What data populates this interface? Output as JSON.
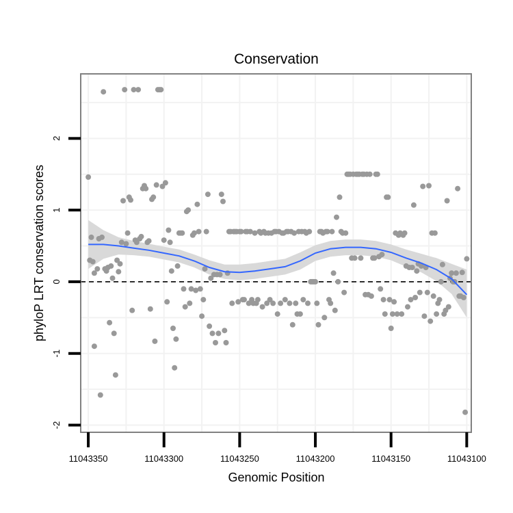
{
  "chart_data": {
    "type": "scatter",
    "title": "Conservation",
    "xlabel": "Genomic Position",
    "ylabel": "phyloP LRT conservation scores",
    "x_reversed": true,
    "xlim": [
      11043355,
      11043097
    ],
    "ylim": [
      -2.1,
      2.9
    ],
    "x_ticks": [
      {
        "value": 11043350,
        "label": "11043350"
      },
      {
        "value": 11043300,
        "label": "11043300"
      },
      {
        "value": 11043250,
        "label": "11043250"
      },
      {
        "value": 11043200,
        "label": "11043200"
      },
      {
        "value": 11043150,
        "label": "11043150"
      },
      {
        "value": 11043100,
        "label": "11043100"
      }
    ],
    "y_ticks": [
      {
        "value": -2,
        "label": "-2"
      },
      {
        "value": -1,
        "label": "-1"
      },
      {
        "value": 0,
        "label": "0"
      },
      {
        "value": 1,
        "label": "1"
      },
      {
        "value": 2,
        "label": "2"
      }
    ],
    "reference_line": {
      "y": 0,
      "style": "dashed"
    },
    "colors": {
      "points": "#999999",
      "smooth": "#3366ff",
      "ribbon": "#d9d9d9",
      "panel_border": "#808080",
      "grid": "#f2f2f2"
    },
    "points": [
      [
        11043350,
        1.46
      ],
      [
        11043349,
        0.3
      ],
      [
        11043348,
        0.62
      ],
      [
        11043347,
        0.28
      ],
      [
        11043346,
        0.12
      ],
      [
        11043346,
        -0.9
      ],
      [
        11043344,
        0.18
      ],
      [
        11043343,
        0.6
      ],
      [
        11043342,
        -1.58
      ],
      [
        11043341,
        0.62
      ],
      [
        11043340,
        2.65
      ],
      [
        11043339,
        0.18
      ],
      [
        11043338,
        0.15
      ],
      [
        11043337,
        0.2
      ],
      [
        11043336,
        -0.57
      ],
      [
        11043335,
        0.22
      ],
      [
        11043334,
        0.05
      ],
      [
        11043333,
        -0.72
      ],
      [
        11043332,
        -1.3
      ],
      [
        11043331,
        0.3
      ],
      [
        11043330,
        0.14
      ],
      [
        11043329,
        0.25
      ],
      [
        11043328,
        0.55
      ],
      [
        11043327,
        1.13
      ],
      [
        11043326,
        2.68
      ],
      [
        11043325,
        0.53
      ],
      [
        11043324,
        0.68
      ],
      [
        11043323,
        1.18
      ],
      [
        11043322,
        1.14
      ],
      [
        11043321,
        -0.4
      ],
      [
        11043320,
        2.68
      ],
      [
        11043319,
        0.58
      ],
      [
        11043318,
        0.55
      ],
      [
        11043317,
        2.68
      ],
      [
        11043316,
        0.6
      ],
      [
        11043315,
        0.63
      ],
      [
        11043314,
        1.3
      ],
      [
        11043313,
        1.34
      ],
      [
        11043312,
        1.3
      ],
      [
        11043311,
        0.55
      ],
      [
        11043310,
        0.57
      ],
      [
        11043309,
        -0.38
      ],
      [
        11043308,
        1.15
      ],
      [
        11043307,
        1.18
      ],
      [
        11043306,
        -0.83
      ],
      [
        11043305,
        1.35
      ],
      [
        11043304,
        2.68
      ],
      [
        11043303,
        2.68
      ],
      [
        11043302,
        2.68
      ],
      [
        11043301,
        1.33
      ],
      [
        11043300,
        0.58
      ],
      [
        11043299,
        1.38
      ],
      [
        11043298,
        -0.28
      ],
      [
        11043297,
        0.72
      ],
      [
        11043296,
        0.55
      ],
      [
        11043295,
        0.15
      ],
      [
        11043294,
        -0.65
      ],
      [
        11043293,
        -1.2
      ],
      [
        11043292,
        -0.8
      ],
      [
        11043291,
        0.22
      ],
      [
        11043290,
        0.68
      ],
      [
        11043289,
        0.68
      ],
      [
        11043288,
        0.68
      ],
      [
        11043287,
        -0.1
      ],
      [
        11043286,
        -0.35
      ],
      [
        11043285,
        0.98
      ],
      [
        11043284,
        1.0
      ],
      [
        11043283,
        -0.3
      ],
      [
        11043282,
        -0.1
      ],
      [
        11043281,
        0.65
      ],
      [
        11043280,
        0.68
      ],
      [
        11043279,
        -0.12
      ],
      [
        11043278,
        1.08
      ],
      [
        11043277,
        0.7
      ],
      [
        11043276,
        -0.1
      ],
      [
        11043275,
        -0.48
      ],
      [
        11043274,
        -0.25
      ],
      [
        11043273,
        0.18
      ],
      [
        11043272,
        0.7
      ],
      [
        11043271,
        1.22
      ],
      [
        11043270,
        -0.62
      ],
      [
        11043269,
        0.05
      ],
      [
        11043268,
        -0.72
      ],
      [
        11043267,
        0.1
      ],
      [
        11043266,
        -0.85
      ],
      [
        11043265,
        0.1
      ],
      [
        11043264,
        -0.72
      ],
      [
        11043263,
        0.1
      ],
      [
        11043262,
        1.22
      ],
      [
        11043261,
        1.12
      ],
      [
        11043260,
        -0.68
      ],
      [
        11043259,
        -0.85
      ],
      [
        11043258,
        0.12
      ],
      [
        11043257,
        0.7
      ],
      [
        11043256,
        0.7
      ],
      [
        11043255,
        -0.3
      ],
      [
        11043254,
        0.7
      ],
      [
        11043253,
        0.7
      ],
      [
        11043252,
        0.7
      ],
      [
        11043251,
        -0.28
      ],
      [
        11043250,
        0.7
      ],
      [
        11043249,
        0.7
      ],
      [
        11043248,
        -0.25
      ],
      [
        11043247,
        -0.25
      ],
      [
        11043246,
        0.7
      ],
      [
        11043245,
        0.7
      ],
      [
        11043244,
        -0.3
      ],
      [
        11043243,
        0.7
      ],
      [
        11043242,
        -0.25
      ],
      [
        11043241,
        -0.3
      ],
      [
        11043240,
        0.68
      ],
      [
        11043239,
        -0.3
      ],
      [
        11043238,
        -0.25
      ],
      [
        11043237,
        0.7
      ],
      [
        11043236,
        0.68
      ],
      [
        11043235,
        -0.35
      ],
      [
        11043234,
        0.7
      ],
      [
        11043233,
        0.68
      ],
      [
        11043232,
        -0.3
      ],
      [
        11043231,
        0.68
      ],
      [
        11043230,
        -0.25
      ],
      [
        11043229,
        0.68
      ],
      [
        11043228,
        -0.3
      ],
      [
        11043227,
        0.7
      ],
      [
        11043226,
        0.7
      ],
      [
        11043225,
        -0.45
      ],
      [
        11043224,
        0.7
      ],
      [
        11043223,
        -0.3
      ],
      [
        11043222,
        0.68
      ],
      [
        11043221,
        0.68
      ],
      [
        11043220,
        -0.25
      ],
      [
        11043219,
        0.7
      ],
      [
        11043218,
        0.7
      ],
      [
        11043217,
        -0.3
      ],
      [
        11043216,
        0.7
      ],
      [
        11043215,
        -0.6
      ],
      [
        11043214,
        0.68
      ],
      [
        11043213,
        -0.3
      ],
      [
        11043212,
        -0.45
      ],
      [
        11043211,
        0.7
      ],
      [
        11043210,
        -0.45
      ],
      [
        11043209,
        0.7
      ],
      [
        11043208,
        -0.25
      ],
      [
        11043207,
        0.7
      ],
      [
        11043206,
        0.68
      ],
      [
        11043205,
        -0.3
      ],
      [
        11043204,
        0.7
      ],
      [
        11043203,
        0.0
      ],
      [
        11043202,
        0.0
      ],
      [
        11043201,
        0.0
      ],
      [
        11043200,
        0.0
      ],
      [
        11043199,
        -0.3
      ],
      [
        11043198,
        -0.6
      ],
      [
        11043197,
        0.7
      ],
      [
        11043196,
        0.7
      ],
      [
        11043195,
        0.68
      ],
      [
        11043194,
        -0.5
      ],
      [
        11043193,
        0.7
      ],
      [
        11043192,
        0.7
      ],
      [
        11043191,
        -0.25
      ],
      [
        11043190,
        -0.3
      ],
      [
        11043189,
        0.7
      ],
      [
        11043188,
        0.12
      ],
      [
        11043187,
        -0.4
      ],
      [
        11043186,
        0.9
      ],
      [
        11043185,
        0.0
      ],
      [
        11043184,
        1.18
      ],
      [
        11043183,
        0.7
      ],
      [
        11043182,
        0.68
      ],
      [
        11043181,
        -0.15
      ],
      [
        11043180,
        0.68
      ],
      [
        11043179,
        1.5
      ],
      [
        11043178,
        1.5
      ],
      [
        11043177,
        1.5
      ],
      [
        11043176,
        0.33
      ],
      [
        11043175,
        1.5
      ],
      [
        11043174,
        0.33
      ],
      [
        11043173,
        1.5
      ],
      [
        11043172,
        1.5
      ],
      [
        11043171,
        1.5
      ],
      [
        11043170,
        0.33
      ],
      [
        11043169,
        1.5
      ],
      [
        11043168,
        1.5
      ],
      [
        11043167,
        -0.18
      ],
      [
        11043166,
        1.5
      ],
      [
        11043165,
        -0.18
      ],
      [
        11043164,
        1.5
      ],
      [
        11043163,
        -0.2
      ],
      [
        11043162,
        0.33
      ],
      [
        11043161,
        0.33
      ],
      [
        11043160,
        1.5
      ],
      [
        11043159,
        1.5
      ],
      [
        11043158,
        0.35
      ],
      [
        11043157,
        -0.1
      ],
      [
        11043156,
        0.38
      ],
      [
        11043155,
        -0.25
      ],
      [
        11043154,
        -0.45
      ],
      [
        11043153,
        1.18
      ],
      [
        11043152,
        1.18
      ],
      [
        11043151,
        -0.25
      ],
      [
        11043150,
        -0.65
      ],
      [
        11043149,
        -0.45
      ],
      [
        11043148,
        -0.28
      ],
      [
        11043147,
        0.68
      ],
      [
        11043146,
        -0.45
      ],
      [
        11043145,
        0.65
      ],
      [
        11043144,
        0.68
      ],
      [
        11043143,
        -0.45
      ],
      [
        11043142,
        0.65
      ],
      [
        11043141,
        0.68
      ],
      [
        11043140,
        0.22
      ],
      [
        11043139,
        -0.35
      ],
      [
        11043138,
        0.2
      ],
      [
        11043137,
        -0.25
      ],
      [
        11043136,
        0.2
      ],
      [
        11043135,
        1.07
      ],
      [
        11043134,
        -0.22
      ],
      [
        11043133,
        0.15
      ],
      [
        11043132,
        0.25
      ],
      [
        11043131,
        -0.15
      ],
      [
        11043130,
        0.22
      ],
      [
        11043129,
        1.33
      ],
      [
        11043128,
        -0.48
      ],
      [
        11043127,
        0.2
      ],
      [
        11043126,
        -0.15
      ],
      [
        11043125,
        1.34
      ],
      [
        11043124,
        -0.55
      ],
      [
        11043123,
        0.68
      ],
      [
        11043122,
        -0.2
      ],
      [
        11043121,
        0.68
      ],
      [
        11043120,
        -0.45
      ],
      [
        11043119,
        -0.3
      ],
      [
        11043118,
        -0.25
      ],
      [
        11043117,
        0.0
      ],
      [
        11043116,
        0.24
      ],
      [
        11043115,
        -0.45
      ],
      [
        11043114,
        -0.4
      ],
      [
        11043113,
        1.13
      ],
      [
        11043112,
        -0.35
      ],
      [
        11043111,
        0.05
      ],
      [
        11043110,
        0.12
      ],
      [
        11043109,
        0.0
      ],
      [
        11043108,
        0.0
      ],
      [
        11043107,
        0.12
      ],
      [
        11043106,
        1.3
      ],
      [
        11043105,
        -0.2
      ],
      [
        11043104,
        -0.2
      ],
      [
        11043103,
        0.13
      ],
      [
        11043102,
        -0.22
      ],
      [
        11043101,
        -1.82
      ],
      [
        11043100,
        0.32
      ]
    ],
    "smooth_line": [
      [
        11043350,
        0.52
      ],
      [
        11043340,
        0.52
      ],
      [
        11043330,
        0.5
      ],
      [
        11043320,
        0.47
      ],
      [
        11043310,
        0.44
      ],
      [
        11043300,
        0.4
      ],
      [
        11043290,
        0.36
      ],
      [
        11043280,
        0.29
      ],
      [
        11043270,
        0.2
      ],
      [
        11043260,
        0.14
      ],
      [
        11043250,
        0.13
      ],
      [
        11043240,
        0.15
      ],
      [
        11043230,
        0.18
      ],
      [
        11043220,
        0.21
      ],
      [
        11043210,
        0.29
      ],
      [
        11043200,
        0.4
      ],
      [
        11043190,
        0.46
      ],
      [
        11043180,
        0.48
      ],
      [
        11043170,
        0.48
      ],
      [
        11043160,
        0.46
      ],
      [
        11043150,
        0.41
      ],
      [
        11043140,
        0.33
      ],
      [
        11043130,
        0.26
      ],
      [
        11043120,
        0.17
      ],
      [
        11043110,
        0.04
      ],
      [
        11043100,
        -0.18
      ]
    ],
    "ribbon_upper": [
      [
        11043350,
        0.86
      ],
      [
        11043340,
        0.72
      ],
      [
        11043330,
        0.62
      ],
      [
        11043320,
        0.57
      ],
      [
        11043310,
        0.53
      ],
      [
        11043300,
        0.49
      ],
      [
        11043290,
        0.45
      ],
      [
        11043280,
        0.38
      ],
      [
        11043270,
        0.3
      ],
      [
        11043260,
        0.24
      ],
      [
        11043250,
        0.24
      ],
      [
        11043240,
        0.26
      ],
      [
        11043230,
        0.29
      ],
      [
        11043220,
        0.32
      ],
      [
        11043210,
        0.41
      ],
      [
        11043200,
        0.51
      ],
      [
        11043190,
        0.57
      ],
      [
        11043180,
        0.59
      ],
      [
        11043170,
        0.59
      ],
      [
        11043160,
        0.57
      ],
      [
        11043150,
        0.52
      ],
      [
        11043140,
        0.45
      ],
      [
        11043130,
        0.39
      ],
      [
        11043120,
        0.33
      ],
      [
        11043110,
        0.25
      ],
      [
        11043100,
        0.17
      ]
    ],
    "ribbon_lower": [
      [
        11043350,
        0.18
      ],
      [
        11043340,
        0.32
      ],
      [
        11043330,
        0.38
      ],
      [
        11043320,
        0.37
      ],
      [
        11043310,
        0.35
      ],
      [
        11043300,
        0.31
      ],
      [
        11043290,
        0.27
      ],
      [
        11043280,
        0.2
      ],
      [
        11043270,
        0.1
      ],
      [
        11043260,
        0.04
      ],
      [
        11043250,
        0.02
      ],
      [
        11043240,
        0.04
      ],
      [
        11043230,
        0.07
      ],
      [
        11043220,
        0.1
      ],
      [
        11043210,
        0.17
      ],
      [
        11043200,
        0.29
      ],
      [
        11043190,
        0.35
      ],
      [
        11043180,
        0.37
      ],
      [
        11043170,
        0.37
      ],
      [
        11043160,
        0.35
      ],
      [
        11043150,
        0.3
      ],
      [
        11043140,
        0.21
      ],
      [
        11043130,
        0.13
      ],
      [
        11043120,
        0.01
      ],
      [
        11043110,
        -0.17
      ],
      [
        11043100,
        -0.5
      ]
    ]
  }
}
